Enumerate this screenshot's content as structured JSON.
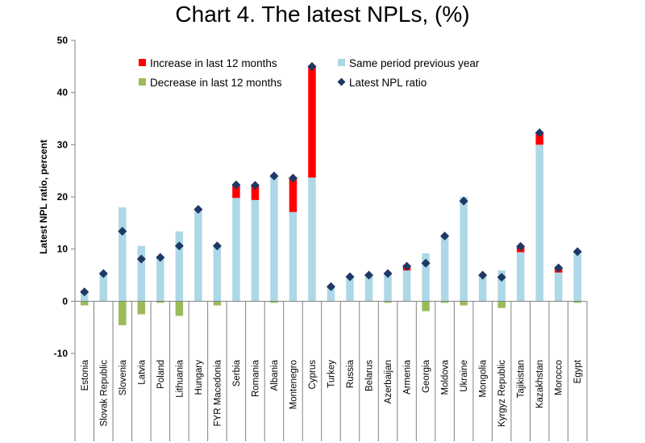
{
  "chart_data": {
    "type": "bar",
    "title": "Chart 4. The latest NPLs, (%)",
    "xlabel": "",
    "ylabel": "Latest NPL ratio, percent",
    "ylim": [
      -10,
      50
    ],
    "yticks": [
      -10,
      0,
      10,
      20,
      30,
      40,
      50
    ],
    "grid": false,
    "legend_position": "top",
    "categories": [
      "Estonia",
      "Slovak Republic",
      "Slovenia",
      "Latvia",
      "Poland",
      "Lithuania",
      "Hungary",
      "FYR Macedonia",
      "Serbia",
      "Romania",
      "Albania",
      "Montenegro",
      "Cyprus",
      "Turkey",
      "Russia",
      "Belarus",
      "Azerbaijan",
      "Armenia",
      "Georgia",
      "Moldova",
      "Ukraine",
      "Mongolia",
      "Kyrgyz Republic",
      "Tajikistan",
      "Kazakhstan",
      "Morocco",
      "Egypt"
    ],
    "series": [
      {
        "name": "Same period previous year",
        "color": "#add8e6",
        "values": [
          1.8,
          5.3,
          18.0,
          10.6,
          8.4,
          13.4,
          17.6,
          10.6,
          19.8,
          19.4,
          24.0,
          17.1,
          23.7,
          2.8,
          4.7,
          5.0,
          5.3,
          5.9,
          9.2,
          12.5,
          20.0,
          5.0,
          5.9,
          9.4,
          30.0,
          5.5,
          9.5
        ]
      },
      {
        "name": "Increase in last 12 months",
        "color": "#ff0000",
        "values": [
          0,
          0,
          0,
          0,
          0,
          0,
          0,
          0,
          2.5,
          2.8,
          0,
          6.5,
          21.3,
          0,
          0,
          0,
          0,
          0.8,
          0,
          0,
          0,
          0,
          0,
          1.1,
          2.3,
          0.9,
          0
        ]
      },
      {
        "name": "Decrease in last 12 months",
        "color": "#9bbb59",
        "values": [
          -0.8,
          0,
          -4.6,
          -2.5,
          -0.3,
          -2.8,
          0,
          -0.8,
          0,
          0,
          -0.3,
          0,
          0,
          0,
          0,
          0,
          -0.3,
          0,
          -1.9,
          -0.3,
          -0.8,
          0,
          -1.3,
          0,
          0,
          0,
          -0.3
        ]
      },
      {
        "name": "Latest NPL ratio",
        "color": "#1f3864",
        "values": [
          1.8,
          5.3,
          13.4,
          8.1,
          8.4,
          10.6,
          17.6,
          10.6,
          22.3,
          22.2,
          24.0,
          23.6,
          45.0,
          2.8,
          4.7,
          5.0,
          5.3,
          6.7,
          7.3,
          12.5,
          19.2,
          5.0,
          4.6,
          10.5,
          32.3,
          6.4,
          9.5
        ]
      }
    ]
  }
}
